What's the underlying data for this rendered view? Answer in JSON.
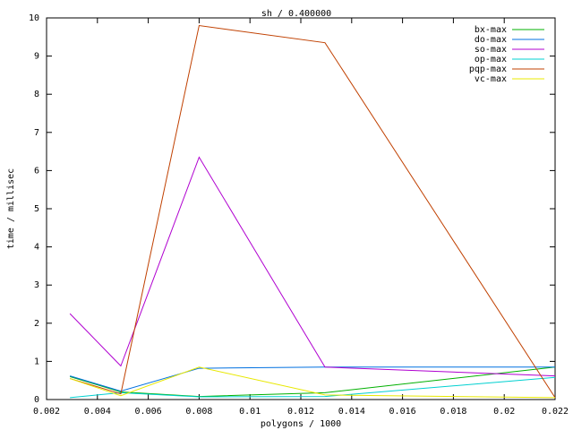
{
  "chart_data": {
    "type": "line",
    "title": "sh / 0.400000",
    "x_label": "polygons / 1000",
    "y_label": "time / millisec",
    "x": [
      0.00292,
      0.00492,
      0.008,
      0.01295,
      0.022
    ],
    "series": [
      {
        "name": "bx-max",
        "color": "#00b000",
        "values": [
          0.6,
          0.2,
          0.08,
          0.18,
          0.85
        ]
      },
      {
        "name": "do-max",
        "color": "#0070e0",
        "values": [
          0.62,
          0.22,
          0.82,
          0.85,
          0.85
        ]
      },
      {
        "name": "so-max",
        "color": "#b000d0",
        "values": [
          2.25,
          0.88,
          6.35,
          0.85,
          0.62
        ]
      },
      {
        "name": "op-max",
        "color": "#00d0d0",
        "values": [
          0.05,
          0.18,
          0.07,
          0.08,
          0.58
        ]
      },
      {
        "name": "pqp-max",
        "color": "#c04000",
        "values": [
          0.55,
          0.15,
          9.8,
          9.35,
          0.05
        ]
      },
      {
        "name": "vc-max",
        "color": "#e8e800",
        "values": [
          0.55,
          0.1,
          0.85,
          0.12,
          0.05
        ]
      }
    ],
    "xlim": [
      0.002,
      0.022
    ],
    "xticks": [
      0.002,
      0.004,
      0.006,
      0.008,
      0.01,
      0.012,
      0.014,
      0.016,
      0.018,
      0.02,
      0.022
    ],
    "ylim": [
      0,
      10
    ],
    "yticks": [
      0,
      1,
      2,
      3,
      4,
      5,
      6,
      7,
      8,
      9,
      10
    ],
    "grid": false,
    "legend": "top-right"
  }
}
